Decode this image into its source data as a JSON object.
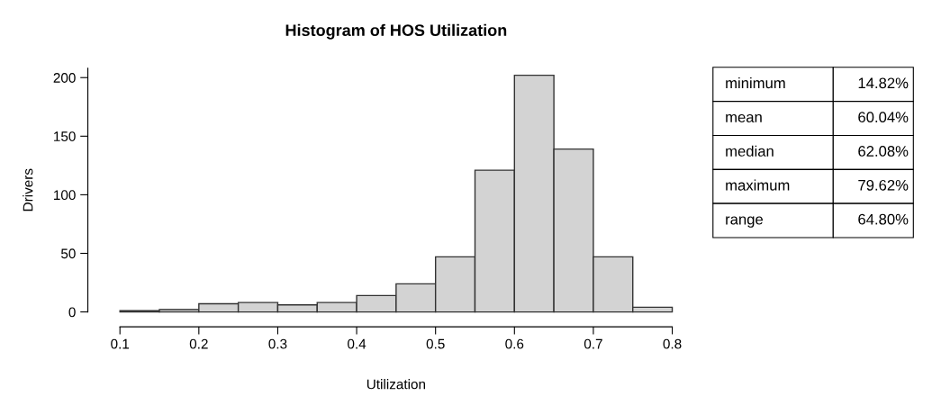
{
  "chart_data": {
    "type": "histogram",
    "title": "Histogram of HOS Utilization",
    "xlabel": "Utilization",
    "ylabel": "Drivers",
    "bins": [
      0.1,
      0.15,
      0.2,
      0.25,
      0.3,
      0.35,
      0.4,
      0.45,
      0.5,
      0.55,
      0.6,
      0.65,
      0.7,
      0.75,
      0.8
    ],
    "values": [
      1,
      2,
      7,
      8,
      6,
      8,
      14,
      24,
      47,
      121,
      202,
      139,
      47,
      4
    ],
    "color": "#d3d3d3",
    "xlim": [
      0.1,
      0.8
    ],
    "xticks": [
      0.1,
      0.2,
      0.3,
      0.4,
      0.5,
      0.6,
      0.7,
      0.8
    ],
    "ylim": [
      0,
      208
    ],
    "yticks": [
      0,
      50,
      100,
      150,
      200
    ],
    "grid": false,
    "legend": false,
    "annotations": [
      "minimum",
      "14.82%",
      "mean",
      "60.04%",
      "median",
      "62.08%",
      "maximum",
      "79.62%",
      "range",
      "64.80%"
    ]
  }
}
